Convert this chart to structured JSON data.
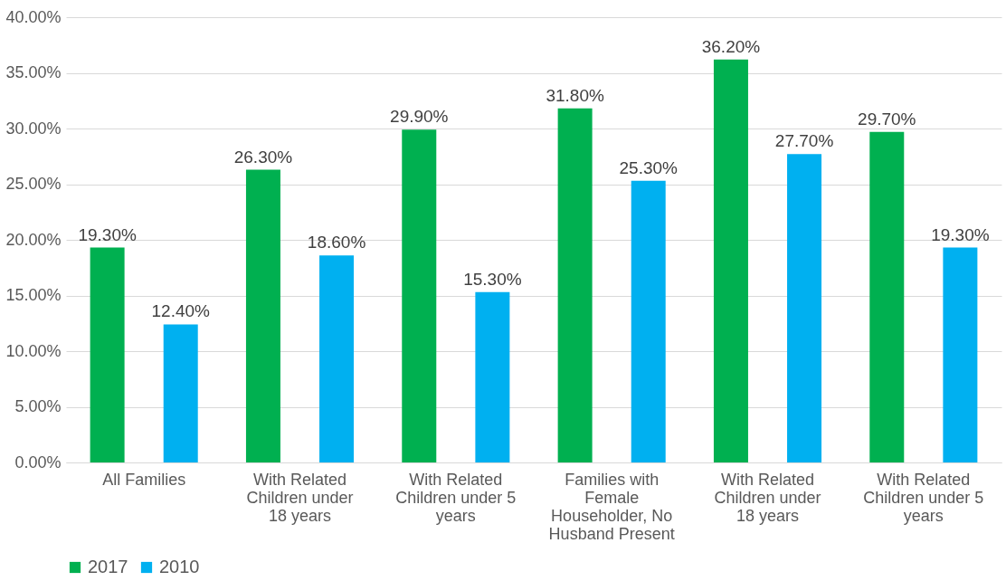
{
  "chart_data": {
    "type": "bar",
    "categories": [
      "All Families",
      "With Related Children under 18 years",
      "With Related Children under 5 years",
      "Families with Female Householder, No Husband Present",
      "With Related Children under 18 years",
      "With Related Children under 5 years"
    ],
    "series": [
      {
        "name": "2017",
        "color": "#00b050",
        "values": [
          19.3,
          26.3,
          29.9,
          31.8,
          36.2,
          29.7
        ],
        "value_labels": [
          "19.30%",
          "26.30%",
          "29.90%",
          "31.80%",
          "36.20%",
          "29.70%"
        ]
      },
      {
        "name": "2010",
        "color": "#00b0f0",
        "values": [
          12.4,
          18.6,
          15.3,
          25.3,
          27.7,
          19.3
        ],
        "value_labels": [
          "12.40%",
          "18.60%",
          "15.30%",
          "25.30%",
          "27.70%",
          "19.30%"
        ]
      }
    ],
    "ylim": [
      0,
      40
    ],
    "yticks": [
      {
        "value": 0,
        "label": "0.00%"
      },
      {
        "value": 5,
        "label": "5.00%"
      },
      {
        "value": 10,
        "label": "10.00%"
      },
      {
        "value": 15,
        "label": "15.00%"
      },
      {
        "value": 20,
        "label": "20.00%"
      },
      {
        "value": 25,
        "label": "25.00%"
      },
      {
        "value": 30,
        "label": "30.00%"
      },
      {
        "value": 35,
        "label": "35.00%"
      },
      {
        "value": 40,
        "label": "40.00%"
      }
    ],
    "grid": "y",
    "legend": "bottom"
  }
}
